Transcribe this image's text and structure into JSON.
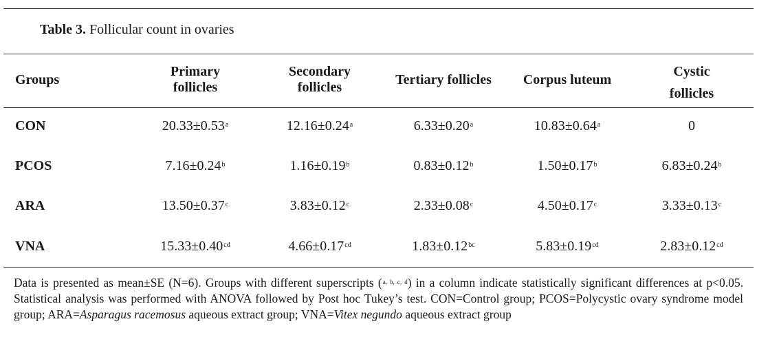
{
  "caption": {
    "label": "Table 3.",
    "title": "Follicular count in ovaries"
  },
  "columns": [
    {
      "line1": "Groups",
      "line2": ""
    },
    {
      "line1": "Primary",
      "line2": "follicles"
    },
    {
      "line1": "Secondary",
      "line2": "follicles"
    },
    {
      "line1": "Tertiary follicles",
      "line2": ""
    },
    {
      "line1": "Corpus luteum",
      "line2": ""
    },
    {
      "line1": "Cystic",
      "line2": "follicles"
    }
  ],
  "rows": [
    {
      "group": "CON",
      "cells": [
        {
          "value": "20.33±0.53",
          "sup": "a"
        },
        {
          "value": "12.16±0.24",
          "sup": "a"
        },
        {
          "value": "6.33±0.20",
          "sup": "a"
        },
        {
          "value": "10.83±0.64",
          "sup": "a"
        },
        {
          "value": "0",
          "sup": ""
        }
      ]
    },
    {
      "group": "PCOS",
      "cells": [
        {
          "value": "7.16±0.24",
          "sup": "b"
        },
        {
          "value": "1.16±0.19",
          "sup": "b"
        },
        {
          "value": "0.83±0.12",
          "sup": "b"
        },
        {
          "value": "1.50±0.17",
          "sup": "b"
        },
        {
          "value": "6.83±0.24",
          "sup": "b"
        }
      ]
    },
    {
      "group": "ARA",
      "cells": [
        {
          "value": "13.50±0.37",
          "sup": "c"
        },
        {
          "value": "3.83±0.12",
          "sup": "c"
        },
        {
          "value": "2.33±0.08",
          "sup": "c"
        },
        {
          "value": "4.50±0.17",
          "sup": "c"
        },
        {
          "value": "3.33±0.13",
          "sup": "c"
        }
      ]
    },
    {
      "group": "VNA",
      "cells": [
        {
          "value": "15.33±0.40",
          "sup": "cd"
        },
        {
          "value": "4.66±0.17",
          "sup": "cd"
        },
        {
          "value": "1.83±0.12",
          "sup": "bc"
        },
        {
          "value": "5.83±0.19",
          "sup": "cd"
        },
        {
          "value": "2.83±0.12",
          "sup": "cd"
        }
      ]
    }
  ],
  "footnote": {
    "part1": "Data is presented as mean±SE (N=6). Groups with different superscripts (",
    "superscripts": "a, b, c, d",
    "part2": ") in a column indicate statistically significant differences at p<0.05. Statistical analysis was performed with ANOVA followed by Post hoc Tukey’s test.  CON=Control group; PCOS=Polycystic ovary syndrome model group; ARA=",
    "ara_species": "Asparagus racemosus",
    "part3": " aqueous extract group; VNA=",
    "vna_species": "Vitex negundo",
    "part4": " aqueous extract group"
  }
}
